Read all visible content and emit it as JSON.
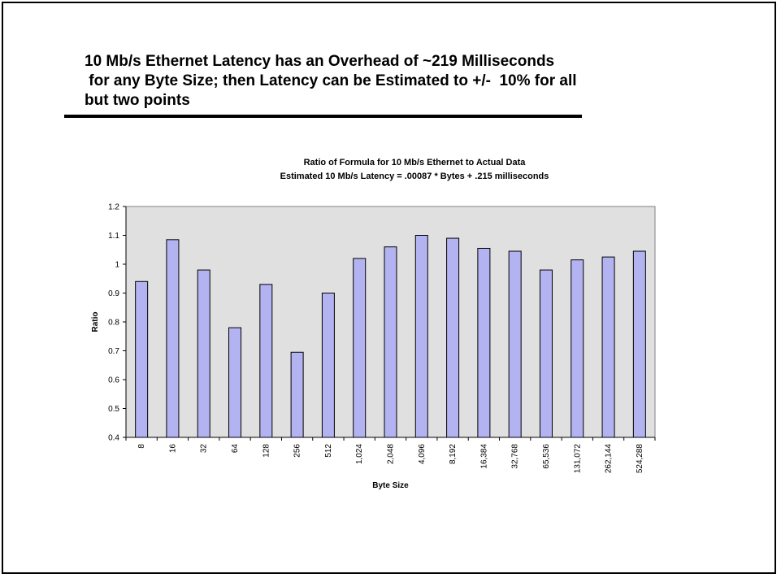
{
  "slide": {
    "headline_lines": [
      "10 Mb/s Ethernet Latency has an Overhead of ~219 Milliseconds",
      " for any Byte Size; then Latency can be Estimated to +/-  10% for all",
      "but two points"
    ]
  },
  "chart_data": {
    "type": "bar",
    "title": "Ratio of Formula for 10 Mb/s Ethernet to Actual Data",
    "subtitle": "Estimated 10 Mb/s Latency  = .00087 * Bytes + .215 milliseconds",
    "xlabel": "Byte Size",
    "ylabel": "Ratio",
    "ylim": [
      0.4,
      1.2
    ],
    "yticks": [
      "0.4",
      "0.5",
      "0.6",
      "0.7",
      "0.8",
      "0.9",
      "1",
      "1.1",
      "1.2"
    ],
    "categories": [
      "8",
      "16",
      "32",
      "64",
      "128",
      "256",
      "512",
      "1,024",
      "2,048",
      "4,096",
      "8,192",
      "16,384",
      "32,768",
      "65,536",
      "131,072",
      "262,144",
      "524,288"
    ],
    "values": [
      0.94,
      1.085,
      0.98,
      0.78,
      0.93,
      0.695,
      0.9,
      1.02,
      1.06,
      1.1,
      1.09,
      1.055,
      1.045,
      0.98,
      1.015,
      1.025,
      1.045
    ],
    "grid": false,
    "legend": "none",
    "colors": {
      "plot_background": "#e0e0e0",
      "bar_fill": "#b3b3f2",
      "bar_stroke": "#000000"
    }
  }
}
